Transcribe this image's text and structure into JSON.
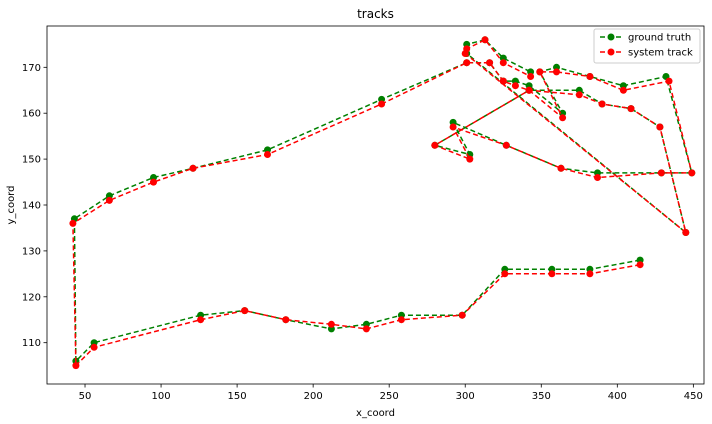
{
  "chart_data": {
    "type": "line",
    "title": "tracks",
    "xlabel": "x_coord",
    "ylabel": "y_coord",
    "xlim": [
      25,
      457
    ],
    "ylim": [
      101,
      179
    ],
    "xticks": [
      50,
      100,
      150,
      200,
      250,
      300,
      350,
      400,
      450
    ],
    "yticks": [
      110,
      120,
      130,
      140,
      150,
      160,
      170
    ],
    "legend_position": "top-right",
    "grid": false,
    "series": [
      {
        "name": "ground truth",
        "color": "#008000",
        "linestyle": "dashed",
        "marker": "circle",
        "points": [
          [
            415,
            128
          ],
          [
            382,
            126
          ],
          [
            357,
            126
          ],
          [
            326,
            126
          ],
          [
            298,
            116
          ],
          [
            258,
            116
          ],
          [
            235,
            114
          ],
          [
            212,
            113
          ],
          [
            182,
            115
          ],
          [
            155,
            117
          ],
          [
            126,
            116
          ],
          [
            56,
            110
          ],
          [
            44,
            106
          ],
          [
            43,
            137
          ],
          [
            66,
            142
          ],
          [
            95,
            146
          ],
          [
            121,
            148
          ],
          [
            170,
            152
          ],
          [
            245,
            163
          ],
          [
            301,
            171
          ],
          [
            316,
            171
          ],
          [
            325,
            167
          ],
          [
            333,
            167
          ],
          [
            342,
            166
          ],
          [
            364,
            160
          ],
          [
            349,
            169
          ],
          [
            360,
            170
          ],
          [
            382,
            168
          ],
          [
            404,
            166
          ],
          [
            432,
            168
          ],
          [
            449,
            147
          ],
          [
            429,
            147
          ],
          [
            387,
            147
          ],
          [
            363,
            148
          ],
          [
            327,
            153
          ],
          [
            292,
            158
          ],
          [
            303,
            151
          ],
          [
            280,
            153
          ],
          [
            342,
            165
          ],
          [
            375,
            165
          ],
          [
            390,
            162
          ],
          [
            409,
            161
          ],
          [
            428,
            157
          ],
          [
            445,
            134
          ],
          [
            301,
            173
          ],
          [
            301,
            175
          ],
          [
            313,
            176
          ],
          [
            325,
            172
          ],
          [
            343,
            169
          ]
        ]
      },
      {
        "name": "system track",
        "color": "#ff0000",
        "linestyle": "dashed",
        "marker": "circle",
        "points": [
          [
            415,
            127
          ],
          [
            382,
            125
          ],
          [
            357,
            125
          ],
          [
            326,
            125
          ],
          [
            298,
            116
          ],
          [
            258,
            115
          ],
          [
            235,
            113
          ],
          [
            212,
            114
          ],
          [
            182,
            115
          ],
          [
            155,
            117
          ],
          [
            126,
            115
          ],
          [
            56,
            109
          ],
          [
            44,
            105
          ],
          [
            42,
            136
          ],
          [
            66,
            141
          ],
          [
            95,
            145
          ],
          [
            121,
            148
          ],
          [
            170,
            151
          ],
          [
            245,
            162
          ],
          [
            301,
            171
          ],
          [
            316,
            171
          ],
          [
            325,
            167
          ],
          [
            333,
            166
          ],
          [
            342,
            165
          ],
          [
            364,
            159
          ],
          [
            349,
            169
          ],
          [
            360,
            169
          ],
          [
            382,
            168
          ],
          [
            404,
            165
          ],
          [
            434,
            167
          ],
          [
            449,
            147
          ],
          [
            429,
            147
          ],
          [
            387,
            146
          ],
          [
            363,
            148
          ],
          [
            327,
            153
          ],
          [
            292,
            157
          ],
          [
            303,
            150
          ],
          [
            280,
            153
          ],
          [
            342,
            165
          ],
          [
            375,
            164
          ],
          [
            390,
            162
          ],
          [
            409,
            161
          ],
          [
            428,
            157
          ],
          [
            445,
            134
          ],
          [
            300,
            173
          ],
          [
            301,
            174
          ],
          [
            313,
            176
          ],
          [
            325,
            171
          ],
          [
            343,
            168
          ]
        ]
      }
    ]
  }
}
